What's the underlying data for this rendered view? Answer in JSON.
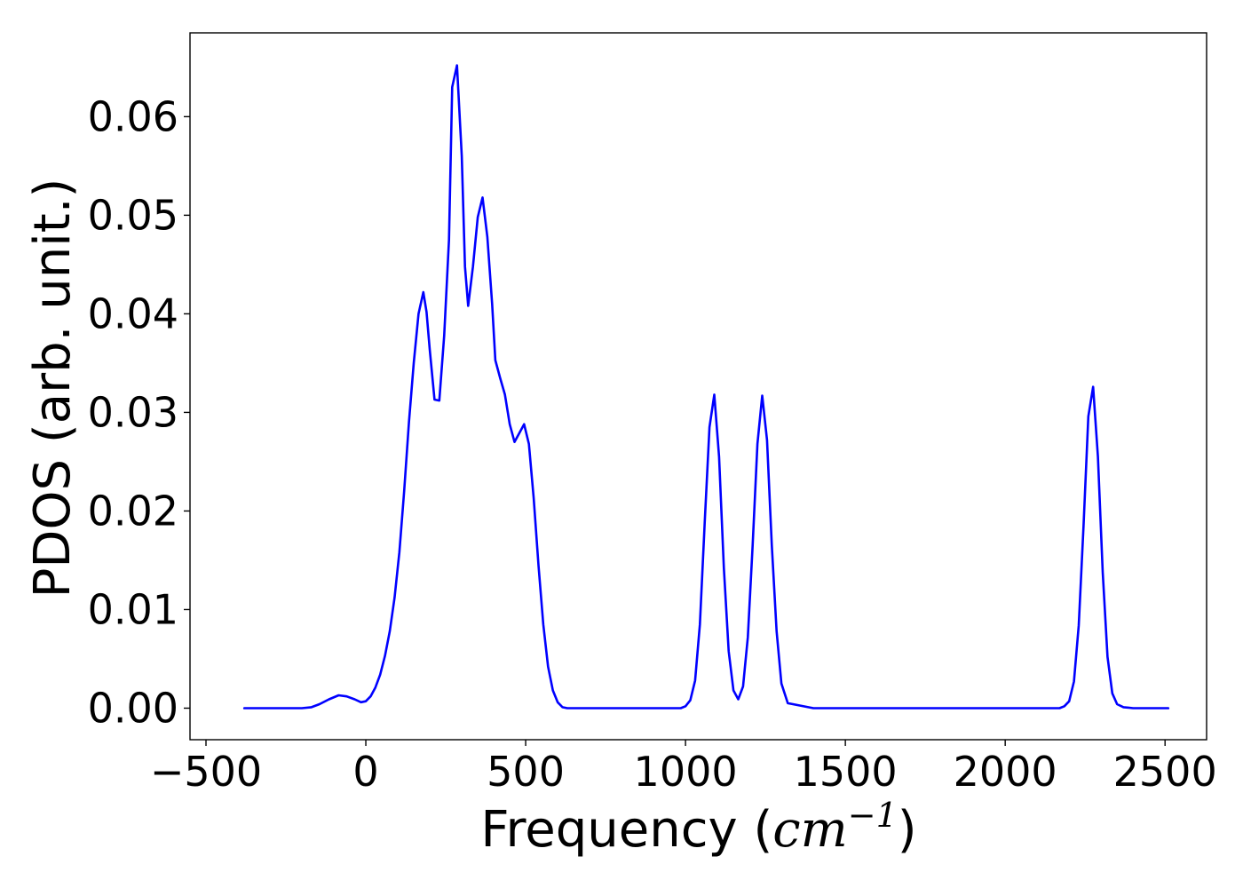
{
  "chart_data": {
    "type": "line",
    "title": "",
    "xlabel": "Frequency",
    "xlabel_unit": {
      "open": " (",
      "base": "cm",
      "exponent": "−1",
      "close": ")"
    },
    "ylabel": "PDOS (arb. unit.)",
    "xlim": [
      -550,
      2630
    ],
    "ylim": [
      -0.0032,
      0.0685
    ],
    "xticks": [
      -500,
      0,
      500,
      1000,
      1500,
      2000,
      2500
    ],
    "xtick_labels": [
      "−500",
      "0",
      "500",
      "1000",
      "1500",
      "2000",
      "2500"
    ],
    "yticks": [
      0.0,
      0.01,
      0.02,
      0.03,
      0.04,
      0.05,
      0.06
    ],
    "ytick_labels": [
      "0.00",
      "0.01",
      "0.02",
      "0.03",
      "0.04",
      "0.05",
      "0.06"
    ],
    "grid": false,
    "legend": false,
    "series": [
      {
        "color": "#0000ff",
        "x": [
          -380,
          -200,
          -170,
          -145,
          -115,
          -85,
          -60,
          -35,
          -15,
          0,
          15,
          30,
          45,
          60,
          75,
          90,
          105,
          120,
          135,
          150,
          165,
          180,
          190,
          200,
          215,
          230,
          245,
          260,
          270,
          285,
          300,
          310,
          320,
          335,
          350,
          365,
          380,
          395,
          405,
          420,
          435,
          450,
          465,
          480,
          495,
          510,
          525,
          540,
          555,
          570,
          585,
          600,
          615,
          630,
          650,
          700,
          800,
          900,
          950,
          985,
          1000,
          1015,
          1030,
          1045,
          1060,
          1075,
          1090,
          1105,
          1120,
          1135,
          1150,
          1165,
          1180,
          1195,
          1210,
          1225,
          1240,
          1255,
          1270,
          1285,
          1300,
          1320,
          1400,
          1500,
          1700,
          1900,
          2100,
          2170,
          2185,
          2200,
          2215,
          2230,
          2245,
          2260,
          2275,
          2290,
          2305,
          2320,
          2335,
          2350,
          2370,
          2400,
          2500,
          2510
        ],
        "y": [
          0.0,
          0.0,
          0.0001,
          0.0004,
          0.0009,
          0.0013,
          0.0012,
          0.0009,
          0.0006,
          0.0007,
          0.0012,
          0.0021,
          0.0034,
          0.0053,
          0.0078,
          0.0112,
          0.0158,
          0.022,
          0.029,
          0.035,
          0.04,
          0.0422,
          0.0402,
          0.0364,
          0.0313,
          0.0312,
          0.0378,
          0.0475,
          0.063,
          0.0652,
          0.056,
          0.0448,
          0.0408,
          0.0448,
          0.0498,
          0.0518,
          0.0478,
          0.041,
          0.0353,
          0.0335,
          0.0318,
          0.0288,
          0.027,
          0.0279,
          0.0288,
          0.0268,
          0.0213,
          0.0145,
          0.0085,
          0.0042,
          0.0018,
          0.0006,
          0.0001,
          0.0,
          0.0,
          0.0,
          0.0,
          0.0,
          0.0,
          0.0,
          0.0002,
          0.0008,
          0.0028,
          0.0085,
          0.0188,
          0.0285,
          0.0318,
          0.0255,
          0.0142,
          0.0058,
          0.0018,
          0.0009,
          0.0022,
          0.0072,
          0.0165,
          0.0268,
          0.0317,
          0.0272,
          0.0165,
          0.0078,
          0.0025,
          0.0005,
          0.0,
          0.0,
          0.0,
          0.0,
          0.0,
          0.0,
          0.0002,
          0.0007,
          0.0027,
          0.0084,
          0.0185,
          0.0296,
          0.0326,
          0.0255,
          0.0138,
          0.0052,
          0.0015,
          0.0004,
          0.0001,
          0.0,
          0.0,
          0.0
        ]
      }
    ]
  }
}
